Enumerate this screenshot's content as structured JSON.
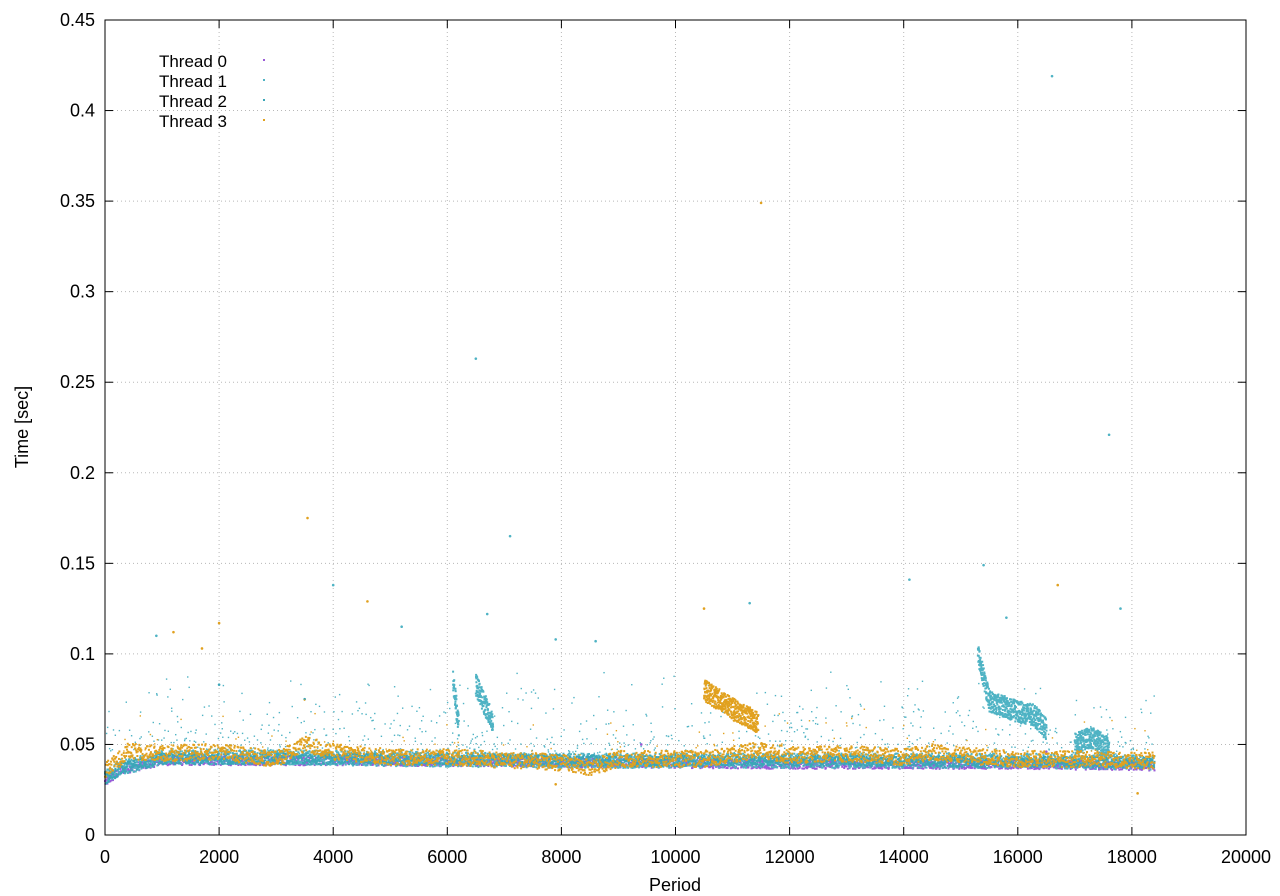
{
  "chart_data": {
    "type": "scatter",
    "xlabel": "Period",
    "ylabel": "Time [sec]",
    "xlim": [
      0,
      20000
    ],
    "ylim": [
      0,
      0.45
    ],
    "x_ticks": [
      "0",
      "2000",
      "4000",
      "6000",
      "8000",
      "10000",
      "12000",
      "14000",
      "16000",
      "18000",
      "20000"
    ],
    "y_ticks": [
      "0",
      "0.05",
      "0.1",
      "0.15",
      "0.2",
      "0.25",
      "0.3",
      "0.35",
      "0.4",
      "0.45"
    ],
    "grid": true,
    "legend_position": "top-left",
    "x_range_of_data": [
      0,
      18400
    ],
    "series": [
      {
        "name": "Thread 0",
        "color": "#9a5ad8",
        "baseline": [
          [
            0,
            0.029
          ],
          [
            300,
            0.036
          ],
          [
            1000,
            0.041
          ],
          [
            4000,
            0.041
          ],
          [
            8000,
            0.04
          ],
          [
            12000,
            0.039
          ],
          [
            16000,
            0.039
          ],
          [
            18400,
            0.038
          ]
        ],
        "outliers": [
          [
            9400,
            0.05
          ],
          [
            16500,
            0.046
          ]
        ]
      },
      {
        "name": "Thread 1",
        "color": "#4fb3c4",
        "baseline": [
          [
            0,
            0.033
          ],
          [
            300,
            0.037
          ],
          [
            1000,
            0.043
          ],
          [
            3000,
            0.043
          ],
          [
            5000,
            0.042
          ],
          [
            8000,
            0.041
          ],
          [
            12000,
            0.041
          ],
          [
            16000,
            0.041
          ],
          [
            18400,
            0.04
          ]
        ],
        "outliers": [
          [
            6500,
            0.263
          ],
          [
            7100,
            0.165
          ],
          [
            16600,
            0.419
          ],
          [
            17600,
            0.221
          ],
          [
            15400,
            0.149
          ],
          [
            14100,
            0.141
          ],
          [
            4000,
            0.138
          ],
          [
            17800,
            0.125
          ],
          [
            11300,
            0.128
          ],
          [
            6700,
            0.122
          ],
          [
            5200,
            0.115
          ],
          [
            900,
            0.11
          ],
          [
            7900,
            0.108
          ],
          [
            8600,
            0.107
          ],
          [
            15800,
            0.12
          ]
        ],
        "bursts": [
          [
            [
              6100,
              0.085
            ],
            [
              6200,
              0.06
            ]
          ],
          [
            [
              6500,
              0.083
            ],
            [
              6800,
              0.062
            ]
          ],
          [
            [
              15300,
              0.1
            ],
            [
              15500,
              0.074
            ],
            [
              16000,
              0.068
            ],
            [
              16300,
              0.066
            ],
            [
              16500,
              0.058
            ]
          ],
          [
            [
              17000,
              0.05
            ],
            [
              17300,
              0.054
            ],
            [
              17600,
              0.048
            ]
          ]
        ]
      },
      {
        "name": "Thread 2",
        "color": "#3aa6b8",
        "baseline": [
          [
            0,
            0.031
          ],
          [
            300,
            0.037
          ],
          [
            1000,
            0.042
          ],
          [
            5000,
            0.042
          ],
          [
            9000,
            0.041
          ],
          [
            13000,
            0.041
          ],
          [
            18400,
            0.04
          ]
        ],
        "outliers": [
          [
            2000,
            0.083
          ],
          [
            3500,
            0.075
          ]
        ]
      },
      {
        "name": "Thread 3",
        "color": "#e1a11f",
        "baseline": [
          [
            0,
            0.035
          ],
          [
            400,
            0.046
          ],
          [
            1000,
            0.045
          ],
          [
            2000,
            0.046
          ],
          [
            3000,
            0.042
          ],
          [
            3500,
            0.05
          ],
          [
            4000,
            0.046
          ],
          [
            5000,
            0.043
          ],
          [
            6000,
            0.043
          ],
          [
            8000,
            0.04
          ],
          [
            8500,
            0.037
          ],
          [
            9000,
            0.042
          ],
          [
            10500,
            0.042
          ],
          [
            11500,
            0.047
          ],
          [
            12000,
            0.044
          ],
          [
            13000,
            0.045
          ],
          [
            14000,
            0.043
          ],
          [
            14500,
            0.046
          ],
          [
            15000,
            0.044
          ],
          [
            16000,
            0.042
          ],
          [
            17000,
            0.042
          ],
          [
            18400,
            0.041
          ]
        ],
        "outliers": [
          [
            11500,
            0.349
          ],
          [
            3550,
            0.175
          ],
          [
            4600,
            0.129
          ],
          [
            16700,
            0.138
          ],
          [
            1200,
            0.112
          ],
          [
            2000,
            0.117
          ],
          [
            1700,
            0.103
          ],
          [
            18100,
            0.023
          ],
          [
            7900,
            0.028
          ],
          [
            10500,
            0.125
          ]
        ],
        "bursts": [
          [
            [
              10500,
              0.08
            ],
            [
              10800,
              0.074
            ],
            [
              11100,
              0.068
            ],
            [
              11450,
              0.062
            ]
          ]
        ]
      }
    ]
  }
}
